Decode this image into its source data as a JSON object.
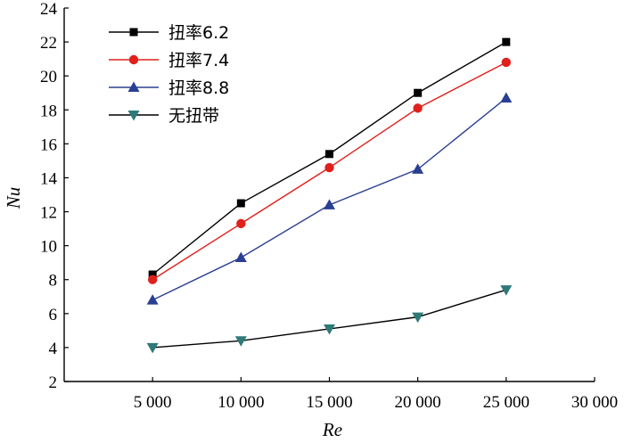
{
  "chart_data": {
    "type": "line",
    "xlabel": "Re",
    "ylabel": "Nu",
    "x": [
      5000,
      10000,
      15000,
      20000,
      25000
    ],
    "xlim": [
      0,
      30000
    ],
    "ylim": [
      2,
      24
    ],
    "xticks": [
      5000,
      10000,
      15000,
      20000,
      25000,
      30000
    ],
    "xtick_labels": [
      "5 000",
      "10 000",
      "15 000",
      "20 000",
      "25 000",
      "30 000"
    ],
    "yticks": [
      2,
      4,
      6,
      8,
      10,
      12,
      14,
      16,
      18,
      20,
      22,
      24
    ],
    "ytick_labels": [
      "2",
      "4",
      "6",
      "8",
      "10",
      "12",
      "14",
      "16",
      "18",
      "20",
      "22",
      "24"
    ],
    "grid": false,
    "legend_position": "top-left",
    "series": [
      {
        "name": "扭率6.2",
        "values": [
          8.3,
          12.5,
          15.4,
          19.0,
          22.0
        ],
        "color": "#000000",
        "marker": "square",
        "marker_color": "#000000"
      },
      {
        "name": "扭率7.4",
        "values": [
          8.0,
          11.3,
          14.6,
          18.1,
          20.8
        ],
        "color": "#e0211b",
        "marker": "circle",
        "marker_color": "#e0211b"
      },
      {
        "name": "扭率8.8",
        "values": [
          6.8,
          9.3,
          12.4,
          14.5,
          18.7
        ],
        "color": "#2a3f93",
        "marker": "triangle-up",
        "marker_color": "#2a3f93"
      },
      {
        "name": "无扭带",
        "values": [
          4.0,
          4.4,
          5.1,
          5.8,
          7.4
        ],
        "color": "#000000",
        "marker": "triangle-down",
        "marker_color": "#2e7a78"
      }
    ]
  }
}
